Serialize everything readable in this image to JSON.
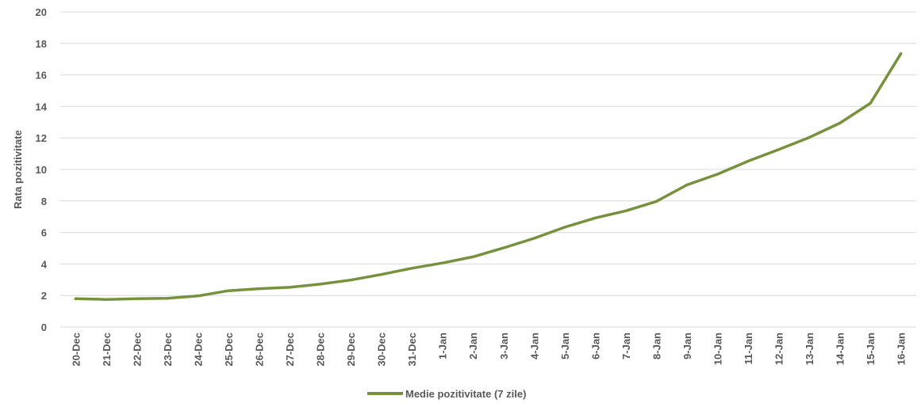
{
  "chart_data": {
    "type": "line",
    "categories": [
      "20-Dec",
      "21-Dec",
      "22-Dec",
      "23-Dec",
      "24-Dec",
      "25-Dec",
      "26-Dec",
      "27-Dec",
      "28-Dec",
      "29-Dec",
      "30-Dec",
      "31-Dec",
      "1-Jan",
      "2-Jan",
      "3-Jan",
      "4-Jan",
      "5-Jan",
      "6-Jan",
      "7-Jan",
      "8-Jan",
      "9-Jan",
      "10-Jan",
      "11-Jan",
      "12-Jan",
      "13-Jan",
      "14-Jan",
      "15-Jan",
      "16-Jan"
    ],
    "series": [
      {
        "name": "Medie pozitivitate (7 zile)",
        "values": [
          1.8,
          1.75,
          1.8,
          1.82,
          1.97,
          2.3,
          2.43,
          2.52,
          2.72,
          2.98,
          3.33,
          3.73,
          4.06,
          4.45,
          5.02,
          5.63,
          6.33,
          6.92,
          7.37,
          7.97,
          9.02,
          9.7,
          10.53,
          11.26,
          12.03,
          12.94,
          14.2,
          17.35
        ],
        "color": "#76923c"
      }
    ],
    "ylabel": "Rata pozitivitate",
    "xlabel": "",
    "ylim": [
      0,
      20
    ],
    "yticks": [
      "0",
      "2",
      "4",
      "6",
      "8",
      "10",
      "12",
      "14",
      "16",
      "18",
      "20"
    ],
    "grid": true,
    "legend_position": "bottom"
  }
}
